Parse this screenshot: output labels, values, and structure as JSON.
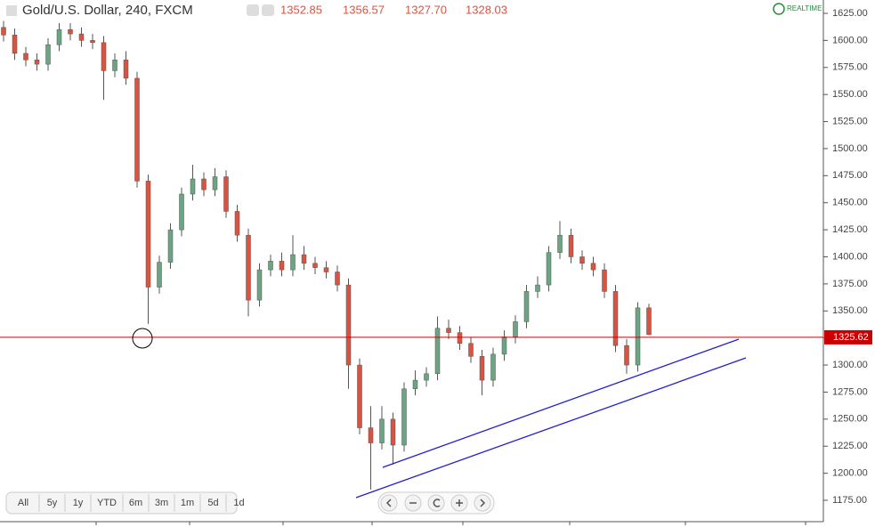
{
  "chart_data": {
    "type": "candlestick",
    "title": "Gold/U.S. Dollar, 240, FXCM",
    "header_values": [
      "1352.85",
      "1356.57",
      "1327.70",
      "1328.03"
    ],
    "status": "REALTIME",
    "open": [
      1612,
      1605,
      1588,
      1582,
      1578,
      1596,
      1610,
      1606,
      1600,
      1598,
      1572,
      1582,
      1565,
      1470,
      1372,
      1395,
      1425,
      1458,
      1472,
      1462,
      1474,
      1442,
      1420,
      1360,
      1388,
      1396,
      1388,
      1402,
      1394,
      1390,
      1386,
      1374,
      1300,
      1242,
      1228,
      1250,
      1226,
      1278,
      1286,
      1292,
      1334,
      1330,
      1320,
      1308,
      1286,
      1310,
      1326,
      1340,
      1368,
      1374,
      1404,
      1420,
      1400,
      1394,
      1388,
      1368,
      1318,
      1300,
      1352.85
    ],
    "high": [
      1618,
      1611,
      1594,
      1588,
      1602,
      1616,
      1616,
      1612,
      1606,
      1604,
      1588,
      1590,
      1571,
      1476,
      1401,
      1431,
      1464,
      1485,
      1478,
      1482,
      1480,
      1448,
      1426,
      1394,
      1402,
      1404,
      1420,
      1410,
      1400,
      1396,
      1392,
      1380,
      1306,
      1262,
      1262,
      1256,
      1284,
      1295,
      1298,
      1345,
      1342,
      1336,
      1326,
      1314,
      1316,
      1332,
      1346,
      1374,
      1382,
      1410,
      1433,
      1426,
      1406,
      1400,
      1394,
      1374,
      1324,
      1358,
      1356.57
    ],
    "low": [
      1599,
      1582,
      1576,
      1572,
      1572,
      1590,
      1600,
      1594,
      1592,
      1545,
      1566,
      1559,
      1464,
      1338,
      1366,
      1389,
      1419,
      1452,
      1456,
      1456,
      1436,
      1414,
      1345,
      1354,
      1382,
      1382,
      1382,
      1388,
      1384,
      1380,
      1368,
      1278,
      1236,
      1185,
      1222,
      1208,
      1220,
      1272,
      1280,
      1286,
      1324,
      1314,
      1302,
      1272,
      1280,
      1304,
      1320,
      1334,
      1362,
      1368,
      1398,
      1394,
      1388,
      1382,
      1362,
      1312,
      1292,
      1294,
      1327.7
    ],
    "close": [
      1605,
      1588,
      1582,
      1578,
      1596,
      1610,
      1606,
      1600,
      1598,
      1572,
      1582,
      1565,
      1470,
      1372,
      1395,
      1425,
      1458,
      1472,
      1462,
      1474,
      1442,
      1420,
      1360,
      1388,
      1396,
      1388,
      1402,
      1394,
      1390,
      1386,
      1374,
      1300,
      1242,
      1228,
      1250,
      1226,
      1278,
      1286,
      1292,
      1334,
      1330,
      1320,
      1308,
      1286,
      1310,
      1326,
      1340,
      1368,
      1374,
      1404,
      1420,
      1400,
      1394,
      1388,
      1368,
      1318,
      1300,
      1352.85,
      1328.03
    ],
    "up_color": "#6ba583",
    "down_color": "#d75442",
    "ylim": [
      1175,
      1625
    ],
    "yticks": [
      {
        "value": 1175,
        "label": "1175.00"
      },
      {
        "value": 1200,
        "label": "1200.00"
      },
      {
        "value": 1225,
        "label": "1225.00"
      },
      {
        "value": 1250,
        "label": "1250.00"
      },
      {
        "value": 1275,
        "label": "1275.00"
      },
      {
        "value": 1300,
        "label": "1300.00"
      },
      {
        "value": 1325,
        "label": "1325.00"
      },
      {
        "value": 1350,
        "label": "1350.00"
      },
      {
        "value": 1375,
        "label": "1375.00"
      },
      {
        "value": 1400,
        "label": "1400.00"
      },
      {
        "value": 1425,
        "label": "1425.00"
      },
      {
        "value": 1450,
        "label": "1450.00"
      },
      {
        "value": 1475,
        "label": "1475.00"
      },
      {
        "value": 1500,
        "label": "1500.00"
      },
      {
        "value": 1525,
        "label": "1525.00"
      },
      {
        "value": 1550,
        "label": "1550.00"
      },
      {
        "value": 1575,
        "label": "1575.00"
      },
      {
        "value": 1600,
        "label": "1600.00"
      },
      {
        "value": 1625,
        "label": "1625.00"
      }
    ],
    "level": {
      "value": 1325.62,
      "label": "1325.62",
      "color": "#cc0000"
    },
    "ranges": [
      "All",
      "5y",
      "1y",
      "YTD",
      "6m",
      "3m",
      "1m",
      "5d",
      "1d"
    ]
  }
}
